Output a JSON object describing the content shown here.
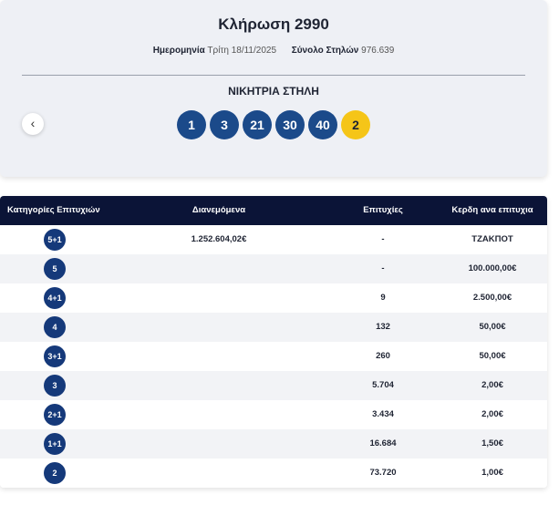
{
  "header": {
    "title": "Κλήρωση 2990",
    "date_label": "Ημερομηνία",
    "date": "Τρίτη 18/11/2025",
    "columns_label": "Σύνολο Στηλών",
    "columns": "976.639",
    "winning_label": "ΝΙΚΗΤΡΙΑ ΣΤΗΛΗ",
    "numbers": [
      "1",
      "3",
      "21",
      "30",
      "40"
    ],
    "joker": "2"
  },
  "table": {
    "headers": [
      "Κατηγορίες Επιτυχιών",
      "Διανεμόμενα",
      "Επιτυχίες",
      "Κερδη ανα επιτυχια"
    ],
    "rows": [
      [
        "5+1",
        "1.252.604,02€",
        "-",
        "ΤΖΑΚΠΟΤ"
      ],
      [
        "5",
        "",
        "-",
        "100.000,00€"
      ],
      [
        "4+1",
        "",
        "9",
        "2.500,00€"
      ],
      [
        "4",
        "",
        "132",
        "50,00€"
      ],
      [
        "3+1",
        "",
        "260",
        "50,00€"
      ],
      [
        "3",
        "",
        "5.704",
        "2,00€"
      ],
      [
        "2+1",
        "",
        "3.434",
        "2,00€"
      ],
      [
        "1+1",
        "",
        "16.684",
        "1,50€"
      ],
      [
        "2",
        "",
        "73.720",
        "1,00€"
      ]
    ]
  }
}
